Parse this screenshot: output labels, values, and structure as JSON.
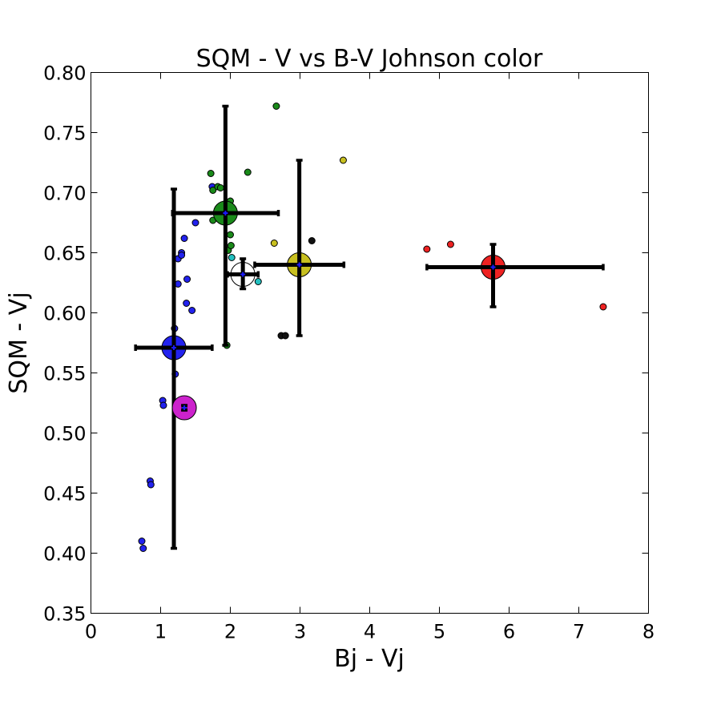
{
  "chart_data": {
    "type": "scatter",
    "title": "SQM - V vs B-V Johnson color",
    "xlabel": "Bj - Vj",
    "ylabel": "SQM - Vj",
    "xlim": [
      0,
      8
    ],
    "ylim": [
      0.35,
      0.8
    ],
    "x_ticks": [
      0,
      1,
      2,
      3,
      4,
      5,
      6,
      7,
      8
    ],
    "x_tick_labels": [
      "0",
      "1",
      "2",
      "3",
      "4",
      "5",
      "6",
      "7",
      "8"
    ],
    "y_ticks": [
      0.35,
      0.4,
      0.45,
      0.5,
      0.55,
      0.6,
      0.65,
      0.7,
      0.75,
      0.8
    ],
    "y_tick_labels": [
      "0.35",
      "0.40",
      "0.45",
      "0.50",
      "0.55",
      "0.60",
      "0.65",
      "0.70",
      "0.75",
      "0.80"
    ],
    "grid": false,
    "series": [
      {
        "color": "#2222ee",
        "points": [
          [
            0.73,
            0.41
          ],
          [
            0.75,
            0.404
          ],
          [
            0.85,
            0.46
          ],
          [
            0.86,
            0.457
          ],
          [
            1.03,
            0.527
          ],
          [
            1.04,
            0.523
          ],
          [
            1.2,
            0.587
          ],
          [
            1.21,
            0.549
          ],
          [
            1.25,
            0.645
          ],
          [
            1.25,
            0.624
          ],
          [
            1.3,
            0.65
          ],
          [
            1.3,
            0.648
          ],
          [
            1.34,
            0.662
          ],
          [
            1.37,
            0.608
          ],
          [
            1.38,
            0.628
          ],
          [
            1.45,
            0.602
          ],
          [
            1.5,
            0.675
          ],
          [
            1.74,
            0.705
          ]
        ]
      },
      {
        "color": "#1a8a1a",
        "points": [
          [
            1.72,
            0.716
          ],
          [
            1.75,
            0.702
          ],
          [
            1.75,
            0.677
          ],
          [
            1.82,
            0.705
          ],
          [
            1.86,
            0.704
          ],
          [
            1.95,
            0.573
          ],
          [
            1.97,
            0.652
          ],
          [
            2.0,
            0.693
          ],
          [
            2.0,
            0.665
          ],
          [
            2.01,
            0.656
          ],
          [
            2.25,
            0.717
          ],
          [
            2.66,
            0.772
          ]
        ]
      },
      {
        "color": "#22c0c0",
        "points": [
          [
            2.02,
            0.646
          ],
          [
            2.4,
            0.626
          ]
        ]
      },
      {
        "color": "#c8c020",
        "points": [
          [
            2.63,
            0.658
          ],
          [
            3.62,
            0.727
          ]
        ]
      },
      {
        "color": "#111111",
        "points": [
          [
            2.73,
            0.581
          ],
          [
            2.79,
            0.581
          ],
          [
            3.17,
            0.66
          ]
        ]
      },
      {
        "color": "#ee2222",
        "points": [
          [
            4.82,
            0.653
          ],
          [
            5.16,
            0.657
          ],
          [
            7.35,
            0.605
          ]
        ]
      }
    ],
    "class_means": [
      {
        "color": "#2222ee",
        "x": 1.19,
        "y": 0.571,
        "xerr": 0.55,
        "yerr_low": 0.404,
        "yerr_high": 0.703
      },
      {
        "color": "#1a8a1a",
        "x": 1.93,
        "y": 0.683,
        "xerr": 0.76,
        "yerr_low": 0.573,
        "yerr_high": 0.772
      },
      {
        "color": "#ffffff",
        "x": 2.18,
        "y": 0.632,
        "xerr": 0.22,
        "yerr_low": 0.62,
        "yerr_high": 0.645
      },
      {
        "color": "#c8c020",
        "x": 2.99,
        "y": 0.64,
        "xerr": 0.64,
        "yerr_low": 0.581,
        "yerr_high": 0.727
      },
      {
        "color": "#ee2222",
        "x": 5.77,
        "y": 0.638,
        "xerr_low": 4.82,
        "xerr_high": 7.35,
        "yerr_low": 0.605,
        "yerr_high": 0.657
      },
      {
        "color": "#cc22cc",
        "x": 1.34,
        "y": 0.521,
        "xerr": 0.02,
        "yerr_low": 0.519,
        "yerr_high": 0.523
      }
    ]
  }
}
